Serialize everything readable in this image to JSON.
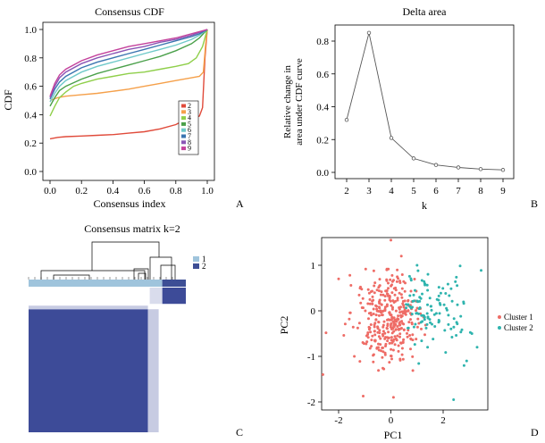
{
  "chart_data": [
    {
      "panel_letter": "A",
      "type": "line",
      "title": "Consensus CDF",
      "xlabel": "Consensus index",
      "ylabel": "CDF",
      "xlim": [
        0,
        1
      ],
      "ylim": [
        0,
        1
      ],
      "x_ticks": [
        "0.0",
        "0.2",
        "0.4",
        "0.6",
        "0.8",
        "1.0"
      ],
      "y_ticks": [
        "0.0",
        "0.2",
        "0.4",
        "0.6",
        "0.8",
        "1.0"
      ],
      "grid": false,
      "legend_position": "right",
      "series": [
        {
          "name": "2",
          "color": "#e04a3a",
          "points": [
            [
              0.0,
              0.23
            ],
            [
              0.05,
              0.24
            ],
            [
              0.1,
              0.245
            ],
            [
              0.2,
              0.25
            ],
            [
              0.3,
              0.255
            ],
            [
              0.4,
              0.26
            ],
            [
              0.5,
              0.27
            ],
            [
              0.6,
              0.28
            ],
            [
              0.7,
              0.3
            ],
            [
              0.8,
              0.33
            ],
            [
              0.85,
              0.36
            ],
            [
              0.9,
              0.37
            ],
            [
              0.95,
              0.39
            ],
            [
              0.97,
              0.45
            ],
            [
              0.985,
              0.8
            ],
            [
              1.0,
              1.0
            ]
          ]
        },
        {
          "name": "3",
          "color": "#f5a04a",
          "points": [
            [
              0.0,
              0.5
            ],
            [
              0.05,
              0.52
            ],
            [
              0.1,
              0.53
            ],
            [
              0.2,
              0.54
            ],
            [
              0.3,
              0.55
            ],
            [
              0.4,
              0.565
            ],
            [
              0.5,
              0.58
            ],
            [
              0.6,
              0.6
            ],
            [
              0.7,
              0.62
            ],
            [
              0.8,
              0.64
            ],
            [
              0.9,
              0.66
            ],
            [
              0.95,
              0.67
            ],
            [
              0.975,
              0.7
            ],
            [
              0.99,
              0.9
            ],
            [
              1.0,
              1.0
            ]
          ]
        },
        {
          "name": "4",
          "color": "#8fcf4a",
          "points": [
            [
              0.0,
              0.39
            ],
            [
              0.03,
              0.46
            ],
            [
              0.06,
              0.52
            ],
            [
              0.1,
              0.56
            ],
            [
              0.15,
              0.6
            ],
            [
              0.2,
              0.62
            ],
            [
              0.3,
              0.65
            ],
            [
              0.4,
              0.67
            ],
            [
              0.5,
              0.69
            ],
            [
              0.6,
              0.7
            ],
            [
              0.7,
              0.72
            ],
            [
              0.8,
              0.74
            ],
            [
              0.88,
              0.76
            ],
            [
              0.93,
              0.8
            ],
            [
              0.97,
              0.88
            ],
            [
              1.0,
              1.0
            ]
          ]
        },
        {
          "name": "5",
          "color": "#4aa04a",
          "points": [
            [
              0.0,
              0.46
            ],
            [
              0.03,
              0.52
            ],
            [
              0.06,
              0.57
            ],
            [
              0.1,
              0.6
            ],
            [
              0.2,
              0.65
            ],
            [
              0.3,
              0.69
            ],
            [
              0.4,
              0.72
            ],
            [
              0.5,
              0.75
            ],
            [
              0.6,
              0.78
            ],
            [
              0.7,
              0.81
            ],
            [
              0.8,
              0.85
            ],
            [
              0.9,
              0.9
            ],
            [
              0.95,
              0.94
            ],
            [
              1.0,
              1.0
            ]
          ]
        },
        {
          "name": "6",
          "color": "#6fc9c9",
          "points": [
            [
              0.0,
              0.49
            ],
            [
              0.03,
              0.55
            ],
            [
              0.06,
              0.6
            ],
            [
              0.1,
              0.64
            ],
            [
              0.2,
              0.7
            ],
            [
              0.3,
              0.74
            ],
            [
              0.4,
              0.77
            ],
            [
              0.5,
              0.8
            ],
            [
              0.6,
              0.83
            ],
            [
              0.7,
              0.86
            ],
            [
              0.8,
              0.89
            ],
            [
              0.9,
              0.93
            ],
            [
              0.95,
              0.96
            ],
            [
              1.0,
              1.0
            ]
          ]
        },
        {
          "name": "7",
          "color": "#3a75b0",
          "points": [
            [
              0.0,
              0.51
            ],
            [
              0.03,
              0.58
            ],
            [
              0.06,
              0.63
            ],
            [
              0.1,
              0.67
            ],
            [
              0.2,
              0.73
            ],
            [
              0.3,
              0.77
            ],
            [
              0.4,
              0.8
            ],
            [
              0.5,
              0.83
            ],
            [
              0.6,
              0.86
            ],
            [
              0.7,
              0.89
            ],
            [
              0.8,
              0.92
            ],
            [
              0.9,
              0.95
            ],
            [
              0.95,
              0.97
            ],
            [
              1.0,
              1.0
            ]
          ]
        },
        {
          "name": "8",
          "color": "#8a55b5",
          "points": [
            [
              0.0,
              0.52
            ],
            [
              0.03,
              0.6
            ],
            [
              0.06,
              0.66
            ],
            [
              0.1,
              0.7
            ],
            [
              0.2,
              0.76
            ],
            [
              0.3,
              0.8
            ],
            [
              0.4,
              0.83
            ],
            [
              0.5,
              0.86
            ],
            [
              0.6,
              0.88
            ],
            [
              0.7,
              0.91
            ],
            [
              0.8,
              0.93
            ],
            [
              0.9,
              0.96
            ],
            [
              0.95,
              0.98
            ],
            [
              1.0,
              1.0
            ]
          ]
        },
        {
          "name": "9",
          "color": "#c4429c",
          "points": [
            [
              0.0,
              0.53
            ],
            [
              0.03,
              0.62
            ],
            [
              0.06,
              0.68
            ],
            [
              0.1,
              0.72
            ],
            [
              0.2,
              0.78
            ],
            [
              0.3,
              0.82
            ],
            [
              0.4,
              0.85
            ],
            [
              0.5,
              0.88
            ],
            [
              0.6,
              0.9
            ],
            [
              0.7,
              0.92
            ],
            [
              0.8,
              0.94
            ],
            [
              0.9,
              0.97
            ],
            [
              0.95,
              0.985
            ],
            [
              1.0,
              1.0
            ]
          ]
        }
      ]
    },
    {
      "panel_letter": "B",
      "type": "line",
      "title": "Delta area",
      "xlabel": "k",
      "ylabel_lines": [
        "Relative change in",
        "area under CDF curve"
      ],
      "xlim": [
        1.5,
        9.5
      ],
      "ylim": [
        -0.02,
        0.9
      ],
      "x_ticks": [
        "2",
        "3",
        "4",
        "5",
        "6",
        "7",
        "8",
        "9"
      ],
      "y_ticks": [
        "0.0",
        "0.2",
        "0.4",
        "0.6",
        "0.8"
      ],
      "grid": false,
      "series": [
        {
          "color": "#555555",
          "x": [
            2,
            3,
            4,
            5,
            6,
            7,
            8,
            9
          ],
          "y": [
            0.32,
            0.85,
            0.21,
            0.085,
            0.045,
            0.03,
            0.02,
            0.015
          ]
        }
      ]
    },
    {
      "panel_letter": "C",
      "type": "heatmap",
      "title": "Consensus matrix k=2",
      "legend_position": "right",
      "legend": [
        {
          "name": "1",
          "color": "#9fc4dc"
        },
        {
          "name": "2",
          "color": "#3d4e95"
        }
      ],
      "cluster_fractions": [
        0.15,
        0.85
      ],
      "colors": {
        "high": "#3d4b98",
        "low": "#ffffff"
      }
    },
    {
      "panel_letter": "D",
      "type": "scatter",
      "xlabel": "PC1",
      "ylabel": "PC2",
      "xlim": [
        -2.8,
        3.8
      ],
      "ylim": [
        -2.2,
        1.65
      ],
      "x_ticks": [
        "-2",
        "0",
        "2"
      ],
      "y_ticks": [
        "-2",
        "-1",
        "0",
        "1"
      ],
      "grid": false,
      "legend_position": "right",
      "series": [
        {
          "name": "Cluster 1",
          "color": "#ee6c66",
          "n_points": 360,
          "center": [
            -0.1,
            -0.15
          ],
          "spread": [
            0.65,
            0.5
          ]
        },
        {
          "name": "Cluster 2",
          "color": "#2fb4ae",
          "n_points": 110,
          "center": [
            1.6,
            0.05
          ],
          "spread": [
            0.7,
            0.45
          ]
        }
      ],
      "sample_points": {
        "Cluster 1": [
          [
            -2.6,
            -1.4
          ],
          [
            -2.0,
            0.7
          ],
          [
            0.0,
            1.55
          ],
          [
            0.1,
            -1.9
          ],
          [
            -1.4,
            -1.0
          ],
          [
            0.4,
            1.2
          ]
        ],
        "Cluster 2": [
          [
            2.4,
            -1.95
          ],
          [
            3.3,
            -0.8
          ],
          [
            2.9,
            -1.1
          ],
          [
            2.8,
            -1.2
          ],
          [
            1.0,
            1.0
          ],
          [
            3.1,
            -0.5
          ]
        ]
      }
    }
  ]
}
